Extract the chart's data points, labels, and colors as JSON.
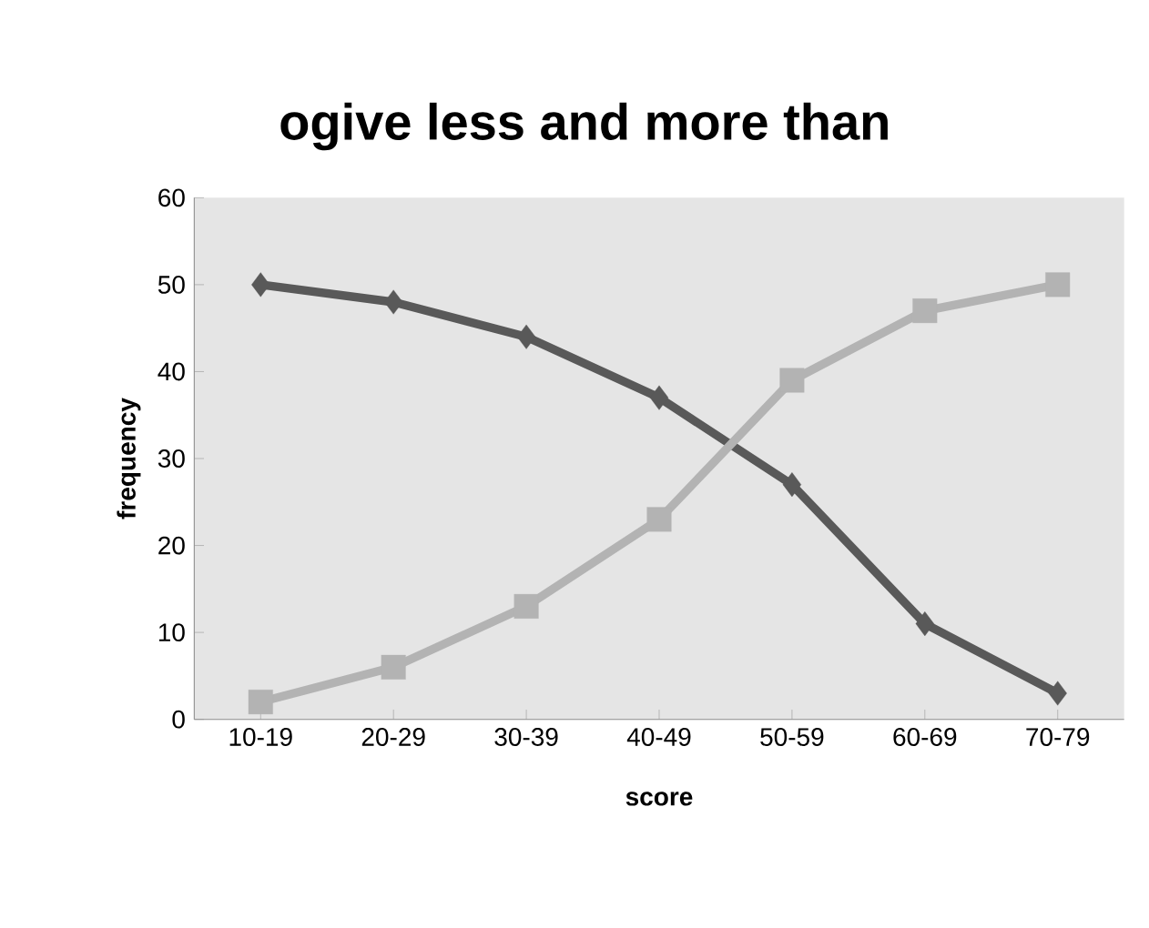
{
  "chart_data": {
    "type": "line",
    "title": "ogive less and more than",
    "xlabel": "score",
    "ylabel": "frequency",
    "categories": [
      "10-19",
      "20-29",
      "30-39",
      "40-49",
      "50-59",
      "60-69",
      "70-79"
    ],
    "series": [
      {
        "color": "#595959",
        "marker": "diamond",
        "values": [
          50,
          48,
          44,
          37,
          27,
          11,
          3
        ]
      },
      {
        "color": "#b3b3b3",
        "marker": "square",
        "values": [
          2,
          6,
          13,
          23,
          39,
          47,
          50
        ]
      }
    ],
    "ylim": [
      0,
      60
    ],
    "yticks": [
      0,
      10,
      20,
      30,
      40,
      50,
      60
    ],
    "grid": false
  }
}
